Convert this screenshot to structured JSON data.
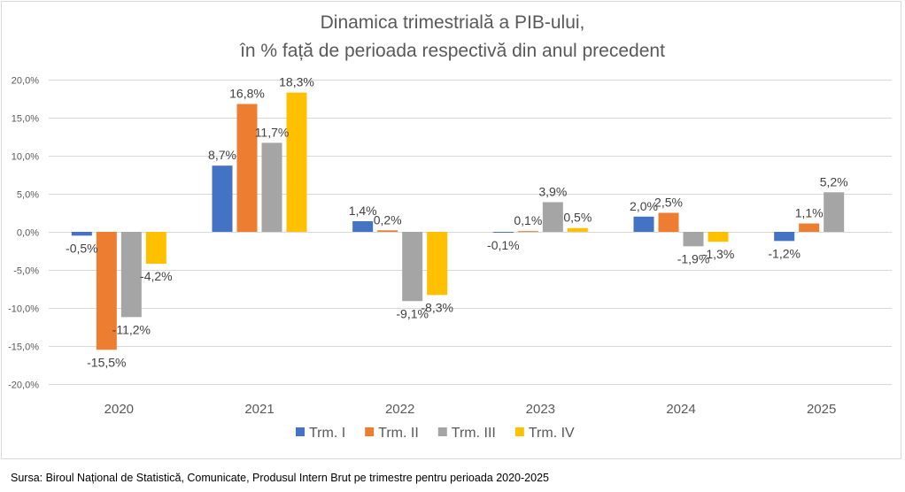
{
  "chart_data": {
    "type": "bar",
    "title": "Dinamica trimestrială a PIB-ului,",
    "subtitle": "în % față de perioada respectivă din anul precedent",
    "xlabel": "",
    "ylabel": "",
    "categories": [
      "2020",
      "2021",
      "2022",
      "2023",
      "2024",
      "2025"
    ],
    "series": [
      {
        "name": "Trm. I",
        "color": "#4472C4",
        "values": [
          -0.5,
          8.7,
          1.4,
          -0.1,
          2.0,
          -1.2
        ],
        "labels": [
          "-0,5%",
          "8,7%",
          "1,4%",
          "-0,1%",
          "2,0%",
          "-1,2%"
        ]
      },
      {
        "name": "Trm. II",
        "color": "#ED7D31",
        "values": [
          -15.5,
          16.8,
          0.2,
          0.1,
          2.5,
          1.1
        ],
        "labels": [
          "-15,5%",
          "16,8%",
          "0,2%",
          "0,1%",
          "2,5%",
          "1,1%"
        ]
      },
      {
        "name": "Trm. III",
        "color": "#A5A5A5",
        "values": [
          -11.2,
          11.7,
          -9.1,
          3.9,
          -1.9,
          5.2
        ],
        "labels": [
          "-11,2%",
          "11,7%",
          "-9,1%",
          "3,9%",
          "-1,9%",
          "5,2%"
        ]
      },
      {
        "name": "Trm. IV",
        "color": "#FFC000",
        "values": [
          -4.2,
          18.3,
          -8.3,
          0.5,
          -1.3,
          null
        ],
        "labels": [
          "-4,2%",
          "18,3%",
          "-8,3%",
          "0,5%",
          "-1,3%",
          null
        ]
      }
    ],
    "ylim": [
      -20,
      20
    ],
    "yticks": [
      20,
      15,
      10,
      5,
      0,
      -5,
      -10,
      -15,
      -20
    ],
    "ytick_labels": [
      "20,0%",
      "15,0%",
      "10,0%",
      "5,0%",
      "0,0%",
      "-5,0%",
      "-10,0%",
      "-15,0%",
      "-20,0%"
    ],
    "grid": true,
    "legend_position": "bottom"
  },
  "source": "Sursa: Biroul Național de Statistică, Comunicate, Produsul Intern Brut pe trimestre pentru perioada 2020-2025"
}
